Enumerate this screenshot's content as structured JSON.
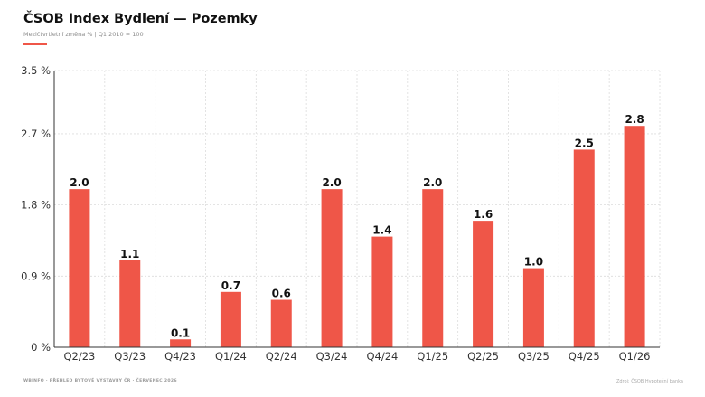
{
  "header": {
    "title": "ČSOB Index Bydlení — Pozemky",
    "subtitle": "Mezičtvrtletní změna % | Q1 2010 = 100"
  },
  "footer": {
    "left": "WBINFO · PŘEHLED BYTOVÉ VÝSTAVBY ČR · ČERVENEC 2026",
    "right": "Zdroj: ČSOB Hypoteční banka"
  },
  "colors": {
    "bar": "#ef5648",
    "accent": "#ef5648",
    "axis": "#333333",
    "grid": "#dcdcdc",
    "text": "#111111"
  },
  "chart_data": {
    "type": "bar",
    "categories": [
      "Q2/23",
      "Q3/23",
      "Q4/23",
      "Q1/24",
      "Q2/24",
      "Q3/24",
      "Q4/24",
      "Q1/25",
      "Q2/25",
      "Q3/25",
      "Q4/25",
      "Q1/26"
    ],
    "values": [
      2.0,
      1.1,
      0.1,
      0.7,
      0.6,
      2.0,
      1.4,
      2.0,
      1.6,
      1.0,
      2.5,
      2.8
    ],
    "value_labels": [
      "2.0",
      "1.1",
      "0.1",
      "0.7",
      "0.6",
      "2.0",
      "1.4",
      "2.0",
      "1.6",
      "1.0",
      "2.5",
      "2.8"
    ],
    "y_ticks": [
      0,
      0.9,
      1.8,
      2.7,
      3.5
    ],
    "y_tick_labels": [
      "0 %",
      "0.9 %",
      "1.8 %",
      "2.7 %",
      "3.5 %"
    ],
    "ylim": [
      0,
      3.5
    ],
    "grid": true,
    "title": "ČSOB Index Bydlení — Pozemky",
    "xlabel": "",
    "ylabel": ""
  }
}
